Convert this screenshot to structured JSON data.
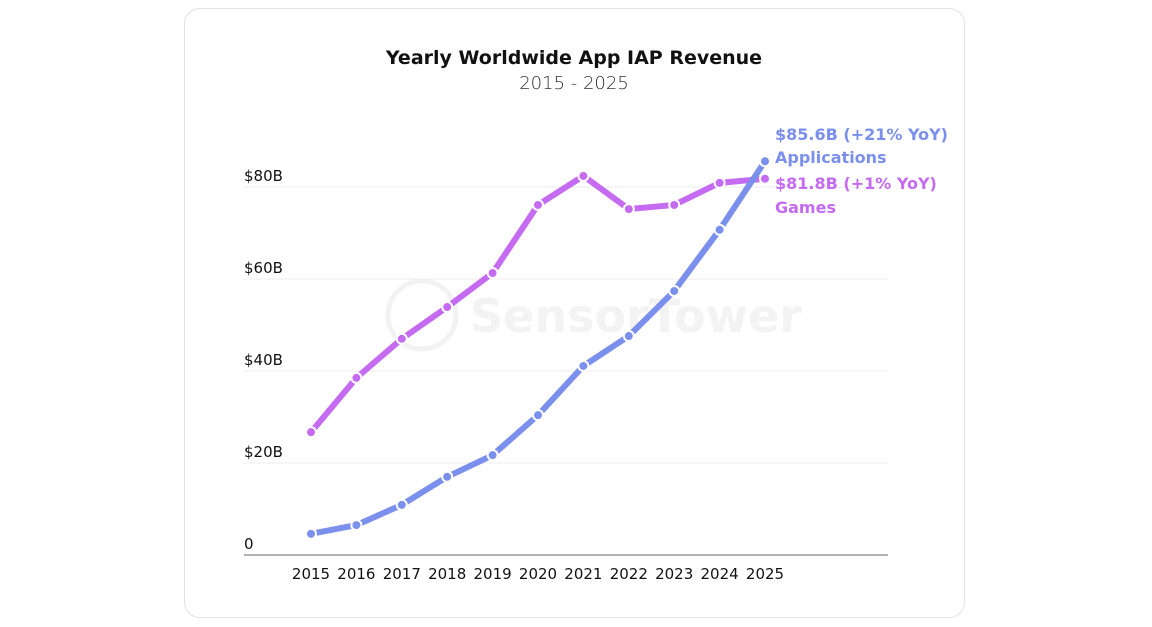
{
  "chart_data": {
    "type": "line",
    "title": "Yearly Worldwide App IAP Revenue",
    "subtitle": "2015 - 2025",
    "xlabel": "",
    "ylabel": "",
    "x": [
      "2015",
      "2016",
      "2017",
      "2018",
      "2019",
      "2020",
      "2021",
      "2022",
      "2023",
      "2024",
      "2025"
    ],
    "ylim": [
      0,
      80
    ],
    "yticks": [
      {
        "value": 0,
        "label": "0"
      },
      {
        "value": 20,
        "label": "$20B"
      },
      {
        "value": 40,
        "label": "$40B"
      },
      {
        "value": 60,
        "label": "$60B"
      },
      {
        "value": 80,
        "label": "$80B"
      }
    ],
    "grid": true,
    "series": [
      {
        "name": "Games",
        "color": "#c56bf2",
        "values": [
          26.7,
          38.5,
          47.0,
          53.9,
          61.3,
          76.1,
          82.4,
          75.2,
          76.1,
          80.9,
          81.8
        ],
        "end_label": "$81.8B (+1% YoY)",
        "end_name": "Games"
      },
      {
        "name": "Applications",
        "color": "#7b8fec",
        "values": [
          4.6,
          6.5,
          10.9,
          17.0,
          21.7,
          30.4,
          41.1,
          47.6,
          57.4,
          70.7,
          85.6
        ],
        "end_label": "$85.6B (+21% YoY)",
        "end_name": "Applications"
      }
    ],
    "watermark": "SensorTower",
    "legend": "inline-right"
  }
}
